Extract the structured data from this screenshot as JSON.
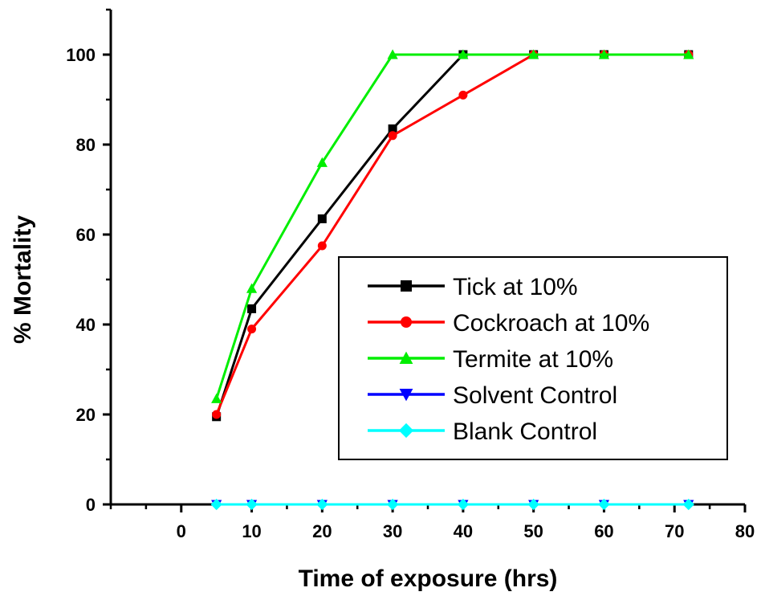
{
  "chart_data": {
    "type": "line",
    "title": "",
    "xlabel": "Time of exposure (hrs)",
    "ylabel": "% Mortality",
    "xlim": [
      -10,
      80
    ],
    "ylim": [
      0,
      110
    ],
    "x_ticks": [
      0,
      10,
      20,
      30,
      40,
      50,
      60,
      70,
      80
    ],
    "y_ticks": [
      0,
      20,
      40,
      60,
      80,
      100
    ],
    "grid": false,
    "legend_position": "center-right",
    "x": [
      5,
      10,
      20,
      30,
      40,
      50,
      60,
      72
    ],
    "series": [
      {
        "name": "Tick at 10%",
        "color": "#000000",
        "marker": "square",
        "values": [
          19.5,
          43.5,
          63.5,
          83.5,
          100,
          100,
          100,
          100
        ]
      },
      {
        "name": "Cockroach at 10%",
        "color": "#ff0000",
        "marker": "circle",
        "values": [
          20,
          39,
          57.5,
          82,
          91,
          100,
          100,
          100
        ]
      },
      {
        "name": "Termite at 10%",
        "color": "#00ee00",
        "marker": "triangle-up",
        "values": [
          23.5,
          48,
          76,
          100,
          100,
          100,
          100,
          100
        ]
      },
      {
        "name": "Solvent Control",
        "color": "#0000ff",
        "marker": "triangle-down",
        "values": [
          0,
          0,
          0,
          0,
          0,
          0,
          0,
          0
        ]
      },
      {
        "name": "Blank Control",
        "color": "#00ffff",
        "marker": "diamond",
        "values": [
          0,
          0,
          0,
          0,
          0,
          0,
          0,
          0
        ]
      }
    ]
  }
}
